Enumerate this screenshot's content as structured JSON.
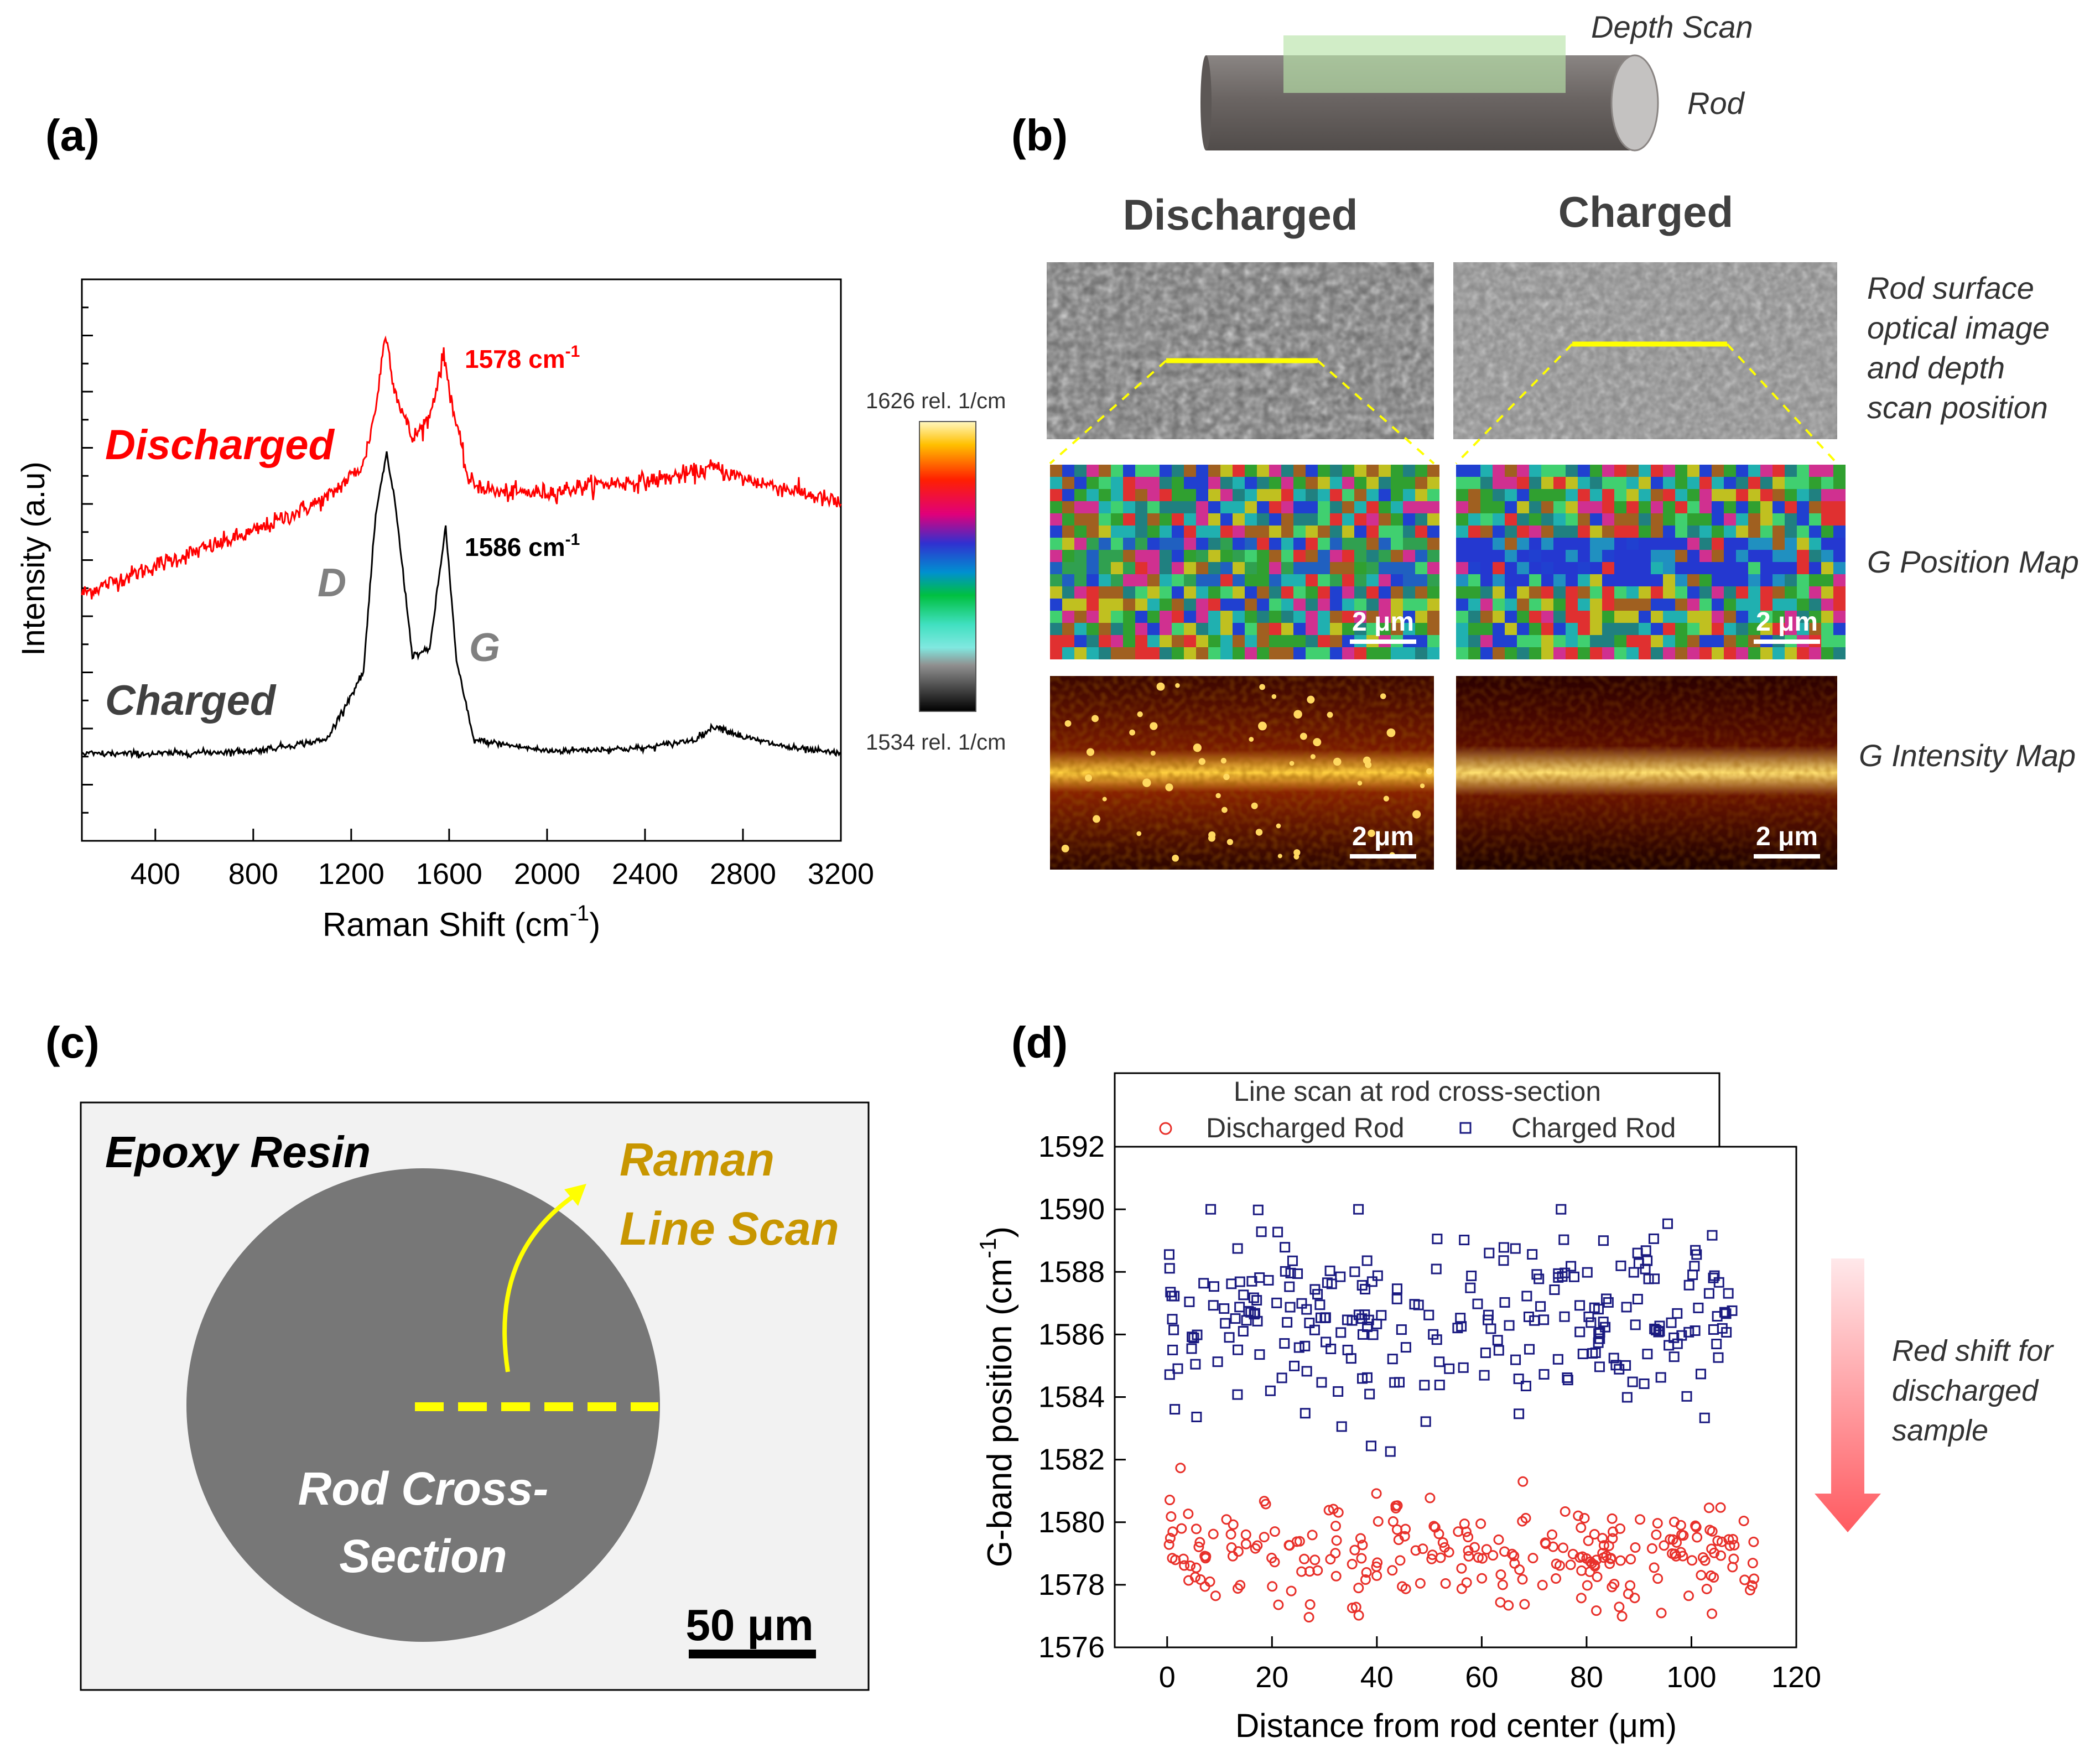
{
  "panels": {
    "a": {
      "label": "(a)"
    },
    "b": {
      "label": "(b)"
    },
    "c": {
      "label": "(c)"
    },
    "d": {
      "label": "(d)"
    }
  },
  "chart_data": [
    {
      "id": "a",
      "type": "line",
      "title": "",
      "xlabel": "Raman Shift (cm",
      "xlabel_sup": "-1",
      "xlabel_end": ")",
      "ylabel": "Intensity (a.u)",
      "xlim": [
        100,
        3200
      ],
      "ylim": [
        0,
        1
      ],
      "x_ticks": [
        400,
        800,
        1200,
        1600,
        2000,
        2400,
        2800,
        3200
      ],
      "series": [
        {
          "name": "Discharged",
          "color": "#ff0000",
          "x": [
            100,
            400,
            800,
            1100,
            1250,
            1300,
            1340,
            1380,
            1450,
            1520,
            1578,
            1620,
            1680,
            1800,
            2000,
            2200,
            2400,
            2600,
            2680,
            2800,
            3000,
            3200
          ],
          "y": [
            0.44,
            0.49,
            0.55,
            0.61,
            0.67,
            0.77,
            0.905,
            0.8,
            0.715,
            0.755,
            0.865,
            0.76,
            0.64,
            0.62,
            0.62,
            0.635,
            0.64,
            0.655,
            0.665,
            0.645,
            0.625,
            0.6
          ]
        },
        {
          "name": "Charged",
          "color": "#000000",
          "x": [
            100,
            400,
            800,
            1100,
            1250,
            1300,
            1345,
            1380,
            1450,
            1520,
            1586,
            1630,
            1700,
            2000,
            2400,
            2600,
            2690,
            2800,
            3000,
            3200
          ],
          "y": [
            0.155,
            0.155,
            0.16,
            0.18,
            0.3,
            0.58,
            0.69,
            0.6,
            0.33,
            0.34,
            0.56,
            0.32,
            0.18,
            0.16,
            0.165,
            0.18,
            0.205,
            0.185,
            0.165,
            0.155
          ]
        }
      ],
      "annotations": {
        "discharged_peak": {
          "text": "1578 cm",
          "sup": "-1"
        },
        "charged_peak": {
          "text": "1586 cm",
          "sup": "-1"
        },
        "d_band": "D",
        "g_band": "G",
        "discharged_label": "Discharged",
        "charged_label": "Charged"
      }
    },
    {
      "id": "d",
      "type": "scatter",
      "title": "",
      "xlabel": "Distance from rod center (μm)",
      "ylabel": "G-band position (cm",
      "ylabel_sup": "-1",
      "ylabel_end": ")",
      "xlim": [
        -10,
        120
      ],
      "ylim": [
        1576,
        1592
      ],
      "x_ticks": [
        0,
        20,
        40,
        60,
        80,
        100,
        120
      ],
      "y_ticks": [
        1576,
        1578,
        1580,
        1582,
        1584,
        1586,
        1588,
        1590,
        1592
      ],
      "legend": {
        "title": "Line scan at rod cross-section",
        "position": "top"
      },
      "series": [
        {
          "name": "Discharged Rod",
          "marker": "circle",
          "color": "#e8302a",
          "y_mean": 1579.1,
          "y_spread": 1.8,
          "x_range": [
            0,
            112
          ],
          "n_points": 250
        },
        {
          "name": "Charged Rod",
          "marker": "square",
          "color": "#1a1a80",
          "y_mean": 1586.5,
          "y_spread": 3.0,
          "x_range": [
            0,
            108
          ],
          "n_points": 260
        }
      ],
      "annotation": {
        "line1": "Red shift for",
        "line2": "discharged",
        "line3": "sample"
      }
    }
  ],
  "panel_b": {
    "schematic": {
      "depth_scan": "Depth Scan",
      "rod": "Rod"
    },
    "col_discharged": "Discharged",
    "col_charged": "Charged",
    "colorbar": {
      "max": "1626 rel. 1/cm",
      "min": "1534 rel. 1/cm"
    },
    "row_optical": [
      "Rod surface",
      "optical image",
      "and depth",
      "scan position"
    ],
    "row_position": "G Position Map",
    "row_intensity": "G Intensity Map",
    "scalebar": "2 μm"
  },
  "panel_c": {
    "epoxy": "Epoxy Resin",
    "raman1": "Raman",
    "raman2": "Line Scan",
    "rod1": "Rod Cross-",
    "rod2": "Section",
    "scalebar": "50 μm"
  }
}
